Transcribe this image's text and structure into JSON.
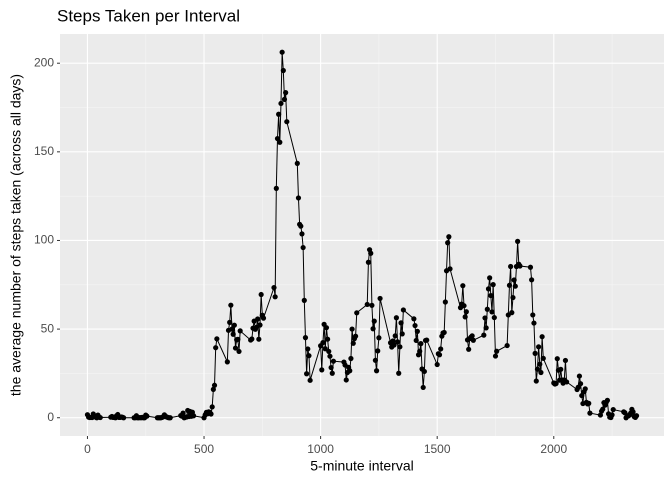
{
  "chart_data": {
    "type": "line",
    "title": "Steps Taken per Interval",
    "x_label": "5-minute interval",
    "y_label": "the average number of steps taken (across all days)",
    "xlim": [
      -117.75,
      2472.75
    ],
    "ylim": [
      -10.31,
      216.48
    ],
    "xticks": [
      0,
      500,
      1000,
      1500,
      2000
    ],
    "yticks": [
      0,
      50,
      100,
      150,
      200
    ],
    "grid": true,
    "series": [
      {
        "color": "#000000",
        "x": [
          0,
          5,
          10,
          15,
          20,
          25,
          30,
          35,
          40,
          45,
          50,
          55,
          100,
          105,
          110,
          115,
          120,
          125,
          130,
          135,
          140,
          145,
          150,
          155,
          200,
          205,
          210,
          215,
          220,
          225,
          230,
          235,
          240,
          245,
          250,
          255,
          300,
          305,
          310,
          315,
          320,
          325,
          330,
          335,
          340,
          345,
          350,
          355,
          400,
          405,
          410,
          415,
          420,
          425,
          430,
          435,
          440,
          445,
          450,
          455,
          500,
          505,
          510,
          515,
          520,
          525,
          530,
          535,
          540,
          545,
          550,
          555,
          600,
          605,
          610,
          615,
          620,
          625,
          630,
          635,
          640,
          645,
          650,
          655,
          700,
          705,
          710,
          715,
          720,
          725,
          730,
          735,
          740,
          745,
          750,
          755,
          800,
          805,
          810,
          815,
          820,
          825,
          830,
          835,
          840,
          845,
          850,
          855,
          900,
          905,
          910,
          915,
          920,
          925,
          930,
          935,
          940,
          945,
          950,
          955,
          1000,
          1005,
          1010,
          1015,
          1020,
          1025,
          1030,
          1035,
          1040,
          1045,
          1050,
          1055,
          1100,
          1105,
          1110,
          1115,
          1120,
          1125,
          1130,
          1135,
          1140,
          1145,
          1150,
          1155,
          1200,
          1205,
          1210,
          1215,
          1220,
          1225,
          1230,
          1235,
          1240,
          1245,
          1250,
          1255,
          1300,
          1305,
          1310,
          1315,
          1320,
          1325,
          1330,
          1335,
          1340,
          1345,
          1350,
          1355,
          1400,
          1405,
          1410,
          1415,
          1420,
          1425,
          1430,
          1435,
          1440,
          1445,
          1450,
          1455,
          1500,
          1505,
          1510,
          1515,
          1520,
          1525,
          1530,
          1535,
          1540,
          1545,
          1550,
          1555,
          1600,
          1605,
          1610,
          1615,
          1620,
          1625,
          1630,
          1635,
          1640,
          1645,
          1650,
          1655,
          1700,
          1705,
          1710,
          1715,
          1720,
          1725,
          1730,
          1735,
          1740,
          1745,
          1750,
          1755,
          1800,
          1805,
          1810,
          1815,
          1820,
          1825,
          1830,
          1835,
          1840,
          1845,
          1850,
          1855,
          1900,
          1905,
          1910,
          1915,
          1920,
          1925,
          1930,
          1935,
          1940,
          1945,
          1950,
          1955,
          2000,
          2005,
          2010,
          2015,
          2020,
          2025,
          2030,
          2035,
          2040,
          2045,
          2050,
          2055,
          2100,
          2105,
          2110,
          2115,
          2120,
          2125,
          2130,
          2135,
          2140,
          2145,
          2150,
          2155,
          2200,
          2205,
          2210,
          2215,
          2220,
          2225,
          2230,
          2235,
          2240,
          2245,
          2250,
          2255,
          2300,
          2305,
          2310,
          2315,
          2320,
          2325,
          2330,
          2335,
          2340,
          2345,
          2350,
          2355
        ],
        "values": [
          1.7,
          0.3,
          0.1,
          0.2,
          0.1,
          2.1,
          0.5,
          0.9,
          0,
          1.5,
          0.3,
          0.1,
          0.3,
          0.7,
          0.2,
          0.3,
          0,
          1.1,
          1.8,
          0.2,
          0.2,
          0.4,
          0.3,
          0,
          0,
          0,
          1.1,
          0,
          0,
          0.1,
          0,
          0.2,
          0,
          0,
          1.5,
          0.9,
          0,
          0,
          0,
          0,
          0.2,
          0.6,
          1.6,
          0.6,
          0.5,
          0.1,
          0,
          0,
          1.2,
          0.9,
          2.6,
          0,
          0.3,
          0.4,
          4.1,
          0.7,
          3.5,
          0.8,
          3.1,
          1.1,
          0,
          1.6,
          3,
          2.2,
          3.3,
          3,
          2.1,
          6.1,
          16,
          18.3,
          39.5,
          44.5,
          31.5,
          49.3,
          53.8,
          63.5,
          50,
          47.1,
          52.2,
          39.3,
          44,
          44.2,
          37.4,
          49,
          43.8,
          44.4,
          50.5,
          54.5,
          49.9,
          51,
          55.7,
          44.3,
          52.3,
          69.5,
          57.8,
          56.2,
          73.4,
          68.2,
          129.4,
          157.5,
          171.2,
          155.4,
          177.3,
          206.2,
          195.9,
          179.6,
          183.4,
          167,
          143.5,
          124,
          109.1,
          108.1,
          103.7,
          96,
          66.2,
          45.2,
          24.8,
          38.8,
          35,
          21.1,
          40.6,
          27,
          42.4,
          52.7,
          38.9,
          50.8,
          44.3,
          37.4,
          34.7,
          28.3,
          25.1,
          31.9,
          31.4,
          29.7,
          21.3,
          25.5,
          28.4,
          26.5,
          33.4,
          50,
          42,
          44.6,
          46,
          59.2,
          63.9,
          87.7,
          94.8,
          92.8,
          63.4,
          50.2,
          54.5,
          32.4,
          26.5,
          37.7,
          45.1,
          67.3,
          42.3,
          39.9,
          43.3,
          41,
          46.2,
          56.4,
          42.8,
          25.1,
          40,
          53.5,
          47.3,
          60.8,
          55.8,
          52,
          43.6,
          48.7,
          35.5,
          37.5,
          41.8,
          27.5,
          17.1,
          26.1,
          43.6,
          43.8,
          30,
          36.1,
          35.5,
          38.8,
          46,
          47.8,
          48.1,
          65.3,
          82.9,
          98.7,
          102.1,
          84,
          62.1,
          64.1,
          74.5,
          63.2,
          56.9,
          59.8,
          43.9,
          38.6,
          44.7,
          45.5,
          46.2,
          43.7,
          46.6,
          56.3,
          50.7,
          61.2,
          72.7,
          78.9,
          68.9,
          59.7,
          75.1,
          56.5,
          34.8,
          37.5,
          40.7,
          58,
          74.7,
          85.3,
          59.3,
          67.8,
          77.7,
          74.2,
          85.3,
          99.5,
          86.6,
          85.6,
          84.9,
          77.8,
          58,
          53.4,
          36.3,
          20.7,
          27.4,
          40,
          30.2,
          25.5,
          45.7,
          33.5,
          19.6,
          19,
          19.3,
          33.3,
          26.8,
          21.2,
          27.3,
          21.3,
          19.5,
          21.3,
          32.3,
          20.2,
          15.9,
          17.2,
          23.5,
          19.2,
          12.5,
          8,
          14.7,
          16.3,
          8.7,
          7.8,
          8.1,
          2.6,
          1.5,
          3.7,
          4.8,
          8.5,
          7.1,
          8.7,
          9.8,
          2.2,
          0.3,
          0.1,
          1.6,
          4.6,
          3.3,
          2.8,
          0,
          0.8,
          1,
          1.6,
          2.6,
          4.7,
          3.3,
          0.6,
          0.2,
          1.1
        ]
      }
    ]
  }
}
